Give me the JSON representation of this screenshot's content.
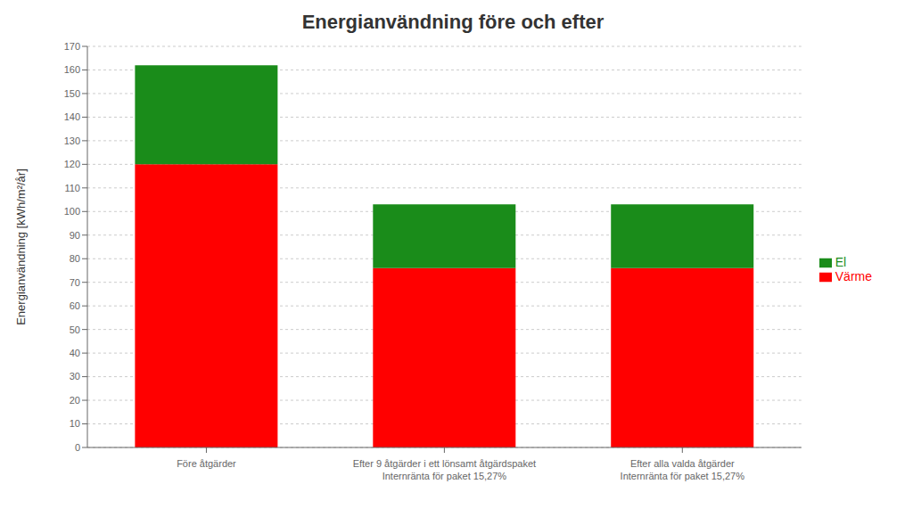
{
  "chart_data": {
    "type": "bar",
    "title": "Energianvändning före och efter",
    "ylabel": "Energianvändning [kWh/m²/år]",
    "categories": [
      "Före åtgärder",
      "Efter 9 åtgärder i ett lönsamt åtgärdspaket\nInternränta för paket 15,27%",
      "Efter alla valda åtgärder\nInternränta för paket 15,27%"
    ],
    "series": [
      {
        "name": "Värme",
        "color": "#ff0000",
        "values": [
          120,
          76,
          76
        ]
      },
      {
        "name": "El",
        "color": "#1a8c1a",
        "values": [
          42,
          27,
          27
        ]
      }
    ],
    "stacked": true,
    "ylim": [
      0,
      170
    ],
    "yticks": [
      0,
      10,
      20,
      30,
      40,
      50,
      60,
      70,
      80,
      90,
      100,
      110,
      120,
      130,
      140,
      150,
      160,
      170
    ],
    "grid": true,
    "legend": "right"
  }
}
